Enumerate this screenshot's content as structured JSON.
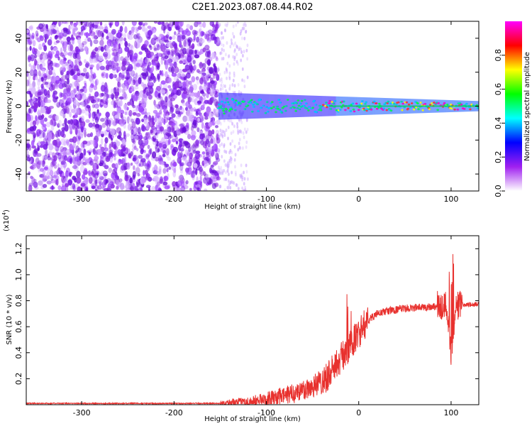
{
  "title": "C2E1.2023.087.08.44.R02",
  "chart_data": [
    {
      "type": "heatmap",
      "xlabel": "Height of straight line (km)",
      "ylabel": "Frequency (Hz)",
      "xlim": [
        -360,
        130
      ],
      "ylim": [
        -50,
        50
      ],
      "x_ticks": [
        -300,
        -200,
        -100,
        0,
        100
      ],
      "x_tick_labels": [
        "-300",
        "-200",
        "-100",
        "0",
        "100"
      ],
      "y_ticks": [
        -40,
        -20,
        0,
        20,
        40
      ],
      "y_tick_labels": [
        "-40",
        "-20",
        "0",
        "20",
        "40"
      ],
      "colorbar": {
        "label": "Normalized spectral amplitude",
        "range": [
          0,
          1
        ],
        "ticks": [
          0.0,
          0.2,
          0.4,
          0.6,
          0.8
        ],
        "tick_labels": [
          "0.0",
          "0.2",
          "0.4",
          "0.6",
          "0.8"
        ],
        "colors": [
          "#ffffff",
          "#a020f0",
          "#0000ff",
          "#00ffff",
          "#00ff00",
          "#ffff00",
          "#ff0000",
          "#ff00ff"
        ]
      },
      "features": {
        "broadband_noise_x_range": [
          -360,
          -152
        ],
        "fading_noise_x_range": [
          -152,
          -120
        ],
        "signal_band_center_hz": 0,
        "signal_band_halfwidth_hz": [
          8,
          3
        ],
        "signal_band_x_range": [
          -152,
          130
        ]
      }
    },
    {
      "type": "line",
      "xlabel": "Height of straight line (km)",
      "ylabel": "SNR (10 * v/v)",
      "y_multiplier_label": "(x10",
      "y_multiplier_exp": "4",
      "y_multiplier_close": ")",
      "xlim": [
        -360,
        130
      ],
      "ylim": [
        0,
        1.3
      ],
      "x_ticks": [
        -300,
        -200,
        -100,
        0,
        100
      ],
      "x_tick_labels": [
        "-300",
        "-200",
        "-100",
        "0",
        "100"
      ],
      "y_ticks": [
        0.2,
        0.4,
        0.6,
        0.8,
        1.0,
        1.2
      ],
      "y_tick_labels": [
        "0.2",
        "0.4",
        "0.6",
        "0.8",
        "1.0",
        "1.2"
      ],
      "series_color": "#e8312e",
      "series": [
        {
          "x": [
            -360,
            -300,
            -200,
            -150,
            -120,
            -100,
            -80,
            -60,
            -40,
            -30,
            -20,
            -10,
            0,
            10,
            20,
            30,
            50,
            70,
            90,
            95,
            100,
            105,
            110,
            130
          ],
          "y": [
            0.01,
            0.01,
            0.01,
            0.01,
            0.02,
            0.04,
            0.07,
            0.11,
            0.18,
            0.25,
            0.35,
            0.45,
            0.55,
            0.65,
            0.7,
            0.72,
            0.74,
            0.75,
            0.76,
            0.76,
            0.4,
            0.76,
            0.77,
            0.77
          ]
        }
      ]
    }
  ]
}
